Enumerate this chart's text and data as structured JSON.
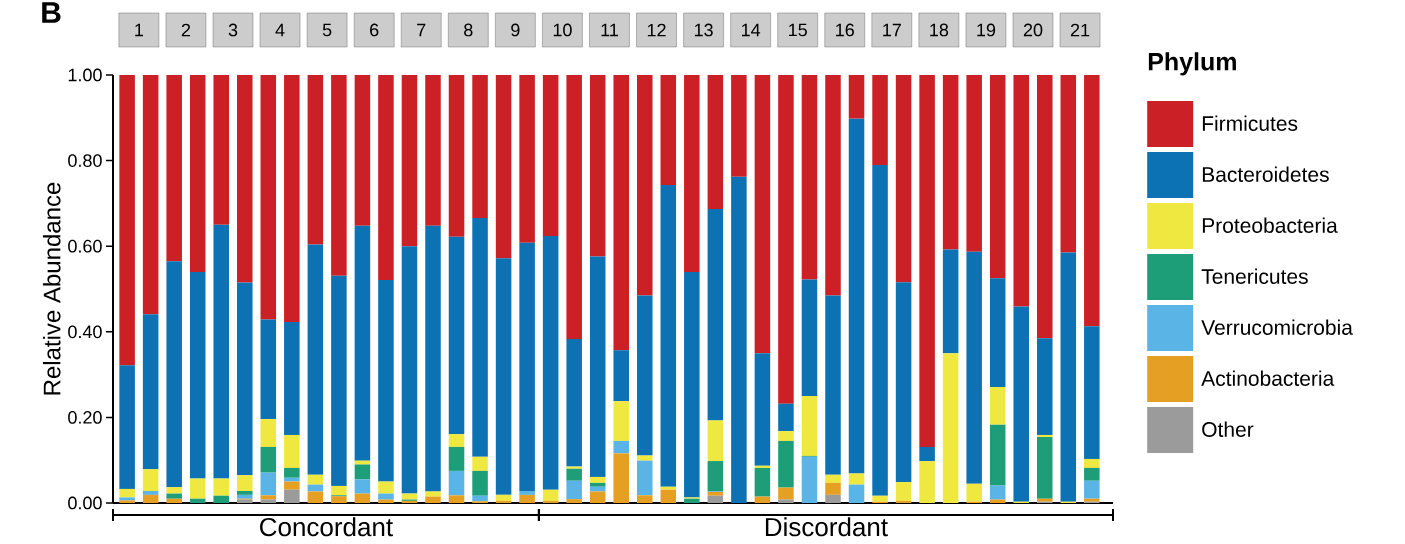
{
  "chart_data": {
    "type": "bar",
    "stacked": true,
    "ylabel": "Relative Abundance",
    "legend_title": "Phylum",
    "legend": "right",
    "annotations": [
      "B",
      "1",
      "2",
      "3",
      "4",
      "5",
      "6",
      "7",
      "8",
      "9",
      "10",
      "11",
      "12",
      "13",
      "14",
      "15",
      "16",
      "17",
      "18",
      "19",
      "20",
      "21",
      "Concordant",
      "Discordant"
    ],
    "categories": [
      null,
      null,
      null,
      null,
      null,
      null,
      null,
      null,
      null,
      null,
      null,
      null,
      null,
      null,
      null,
      null,
      null,
      null,
      null,
      null,
      null,
      null,
      null,
      null,
      null,
      null,
      null,
      null,
      null,
      null,
      null,
      null,
      null,
      null,
      null,
      null,
      null,
      null,
      null,
      null,
      null,
      null
    ],
    "ylim": [
      0,
      1
    ],
    "yticks": [
      {
        "value": 0,
        "label": "0.00"
      },
      {
        "value": 0.2,
        "label": "0.20"
      },
      {
        "value": 0.4,
        "label": "0.40"
      },
      {
        "value": 0.6,
        "label": "0.60"
      },
      {
        "value": 0.8,
        "label": "0.80"
      },
      {
        "value": 1,
        "label": "1.00"
      }
    ],
    "series": [
      {
        "name": "Other",
        "color": "#9b9b9b",
        "values": [
          0,
          0,
          0,
          0,
          0,
          0.008,
          0.008,
          0.031,
          0,
          0,
          0,
          0,
          0,
          0,
          0,
          0,
          0,
          0,
          0,
          0,
          0,
          0,
          0,
          0,
          0,
          0.017,
          0,
          0,
          0.008,
          0,
          0.019,
          0,
          0,
          0,
          0,
          0,
          0,
          0,
          0,
          0.003,
          0,
          0.003
        ]
      },
      {
        "name": "Actinobacteria",
        "color": "#e5a024",
        "values": [
          0.006,
          0.019,
          0.01,
          0,
          0,
          0.002,
          0.01,
          0.019,
          0.027,
          0.016,
          0.022,
          0.008,
          0.005,
          0.015,
          0.018,
          0.004,
          0.005,
          0.019,
          0.005,
          0.009,
          0.027,
          0.116,
          0.018,
          0.031,
          0,
          0.009,
          0,
          0.015,
          0.028,
          0,
          0.028,
          0,
          0.003,
          0.005,
          0,
          0,
          0.003,
          0.008,
          0,
          0.007,
          0,
          0.007
        ]
      },
      {
        "name": "Verrucomicrobia",
        "color": "#5ab4e5",
        "values": [
          0.007,
          0.009,
          0,
          0,
          0,
          0.009,
          0.053,
          0.009,
          0.016,
          0,
          0.033,
          0.014,
          0,
          0,
          0.057,
          0.013,
          0,
          0.009,
          0,
          0.043,
          0.011,
          0.029,
          0.081,
          0,
          0,
          0.002,
          0,
          0,
          0,
          0.108,
          0,
          0.043,
          0,
          0,
          0,
          0,
          0,
          0.033,
          0,
          0,
          0,
          0.042
        ]
      },
      {
        "name": "Tenericutes",
        "color": "#1d9e78",
        "values": [
          0,
          0,
          0.012,
          0.01,
          0.017,
          0.009,
          0.06,
          0.023,
          0,
          0.002,
          0.035,
          0,
          0.003,
          0,
          0.056,
          0.058,
          0,
          0,
          0,
          0.028,
          0.009,
          0,
          0,
          0,
          0.01,
          0.07,
          0,
          0.067,
          0.109,
          0.002,
          0,
          0,
          0,
          0,
          0,
          0,
          0,
          0.142,
          0,
          0.144,
          0,
          0.03
        ]
      },
      {
        "name": "Proteobacteria",
        "color": "#eee840",
        "values": [
          0.02,
          0.051,
          0.015,
          0.047,
          0.04,
          0.037,
          0.065,
          0.077,
          0.023,
          0.022,
          0.009,
          0.028,
          0.014,
          0.012,
          0.03,
          0.033,
          0.014,
          0,
          0.026,
          0.005,
          0.014,
          0.093,
          0.012,
          0.007,
          0.003,
          0.095,
          0,
          0.005,
          0.023,
          0.14,
          0.019,
          0.026,
          0.014,
          0.044,
          0.098,
          0.35,
          0.042,
          0.088,
          0.003,
          0.005,
          0.003,
          0.021
        ]
      },
      {
        "name": "Bacteroidetes",
        "color": "#0c72b3",
        "values": [
          0.289,
          0.362,
          0.528,
          0.483,
          0.593,
          0.45,
          0.233,
          0.264,
          0.538,
          0.491,
          0.549,
          0.471,
          0.578,
          0.621,
          0.461,
          0.558,
          0.553,
          0.58,
          0.593,
          0.298,
          0.515,
          0.119,
          0.374,
          0.705,
          0.527,
          0.494,
          0.762,
          0.263,
          0.064,
          0.272,
          0.419,
          0.829,
          0.773,
          0.467,
          0.033,
          0.242,
          0.542,
          0.254,
          0.456,
          0.226,
          0.582,
          0.31
        ]
      },
      {
        "name": "Firmicutes",
        "color": "#cc2027",
        "values": [
          0.678,
          0.559,
          0.435,
          0.46,
          0.35,
          0.485,
          0.571,
          0.577,
          0.396,
          0.469,
          0.352,
          0.479,
          0.4,
          0.352,
          0.378,
          0.334,
          0.428,
          0.392,
          0.376,
          0.617,
          0.424,
          0.643,
          0.515,
          0.257,
          0.46,
          0.313,
          0.238,
          0.65,
          0.768,
          0.478,
          0.515,
          0.102,
          0.21,
          0.484,
          0.869,
          0.408,
          0.413,
          0.475,
          0.541,
          0.615,
          0.415,
          0.587
        ]
      }
    ]
  }
}
